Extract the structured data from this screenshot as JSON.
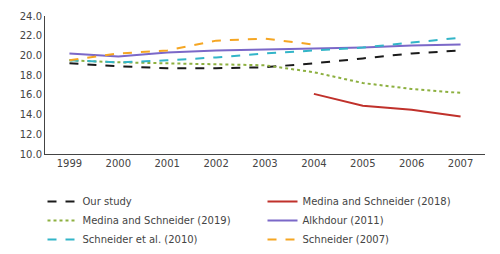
{
  "chart_data": {
    "type": "line",
    "x": [
      1999,
      2000,
      2001,
      2002,
      2003,
      2004,
      2005,
      2006,
      2007
    ],
    "series": [
      {
        "name": "Our study",
        "color": "#1a1a1a",
        "line_style": "dashed",
        "values": [
          19.2,
          18.9,
          18.7,
          18.7,
          18.8,
          19.2,
          19.7,
          20.2,
          20.5
        ]
      },
      {
        "name": "Medina and Schneider (2018)",
        "color": "#c0312b",
        "line_style": "solid",
        "values": [
          null,
          null,
          null,
          null,
          null,
          16.1,
          14.9,
          14.5,
          13.8
        ]
      },
      {
        "name": "Medina and Schneider (2019)",
        "color": "#8db040",
        "line_style": "dotted",
        "values": [
          19.5,
          19.3,
          19.2,
          19.1,
          19.0,
          18.3,
          17.2,
          16.6,
          16.2
        ]
      },
      {
        "name": "Alkhdour (2011)",
        "color": "#7b68c8",
        "line_style": "solid",
        "values": [
          20.2,
          19.9,
          20.3,
          20.5,
          20.6,
          20.7,
          20.8,
          21.0,
          21.1
        ]
      },
      {
        "name": "Schneider et al. (2010)",
        "color": "#33b5c8",
        "line_style": "dashed",
        "values": [
          19.5,
          19.3,
          19.5,
          19.8,
          20.2,
          20.5,
          20.8,
          21.3,
          21.8
        ]
      },
      {
        "name": "Schneider (2007)",
        "color": "#f5a623",
        "line_style": "dashed",
        "values": [
          19.5,
          20.2,
          20.5,
          21.5,
          21.7,
          21.1,
          null,
          null,
          null
        ]
      }
    ],
    "xlim": [
      1998.5,
      2007.5
    ],
    "xticks": [
      1999,
      2000,
      2001,
      2002,
      2003,
      2004,
      2005,
      2006,
      2007
    ],
    "ylim": [
      10.0,
      24.0
    ],
    "yticks": [
      {
        "value": 10.0,
        "label": "10.0"
      },
      {
        "value": 12.0,
        "label": "12.0"
      },
      {
        "value": 14.0,
        "label": "14.0"
      },
      {
        "value": 16.0,
        "label": "16.0"
      },
      {
        "value": 18.0,
        "label": "18.0"
      },
      {
        "value": 20.0,
        "label": "20.0"
      },
      {
        "value": 22.0,
        "label": "22.0"
      },
      {
        "value": 24.0,
        "label": "24.0"
      }
    ],
    "grid": false,
    "legend": "bottom"
  }
}
